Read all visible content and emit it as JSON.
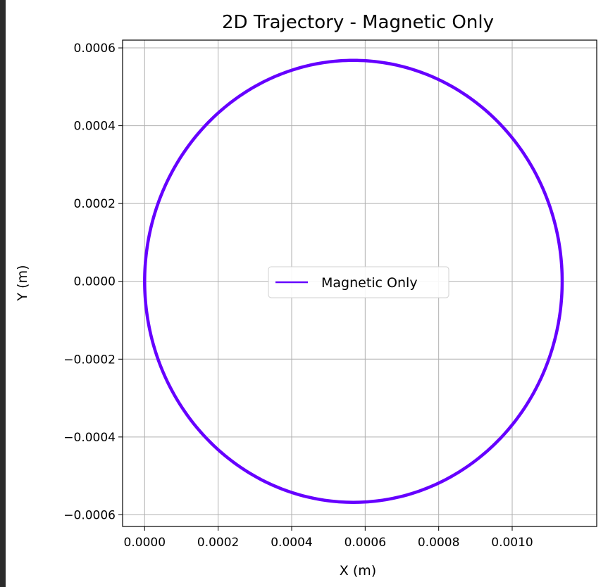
{
  "chart_data": {
    "type": "line",
    "title": "2D Trajectory - Magnetic Only",
    "xlabel": "X (m)",
    "ylabel": "Y (m)",
    "xlim": [
      -6e-05,
      0.00123
    ],
    "ylim": [
      -0.00063,
      0.00062
    ],
    "x_ticks": [
      0.0,
      0.0002,
      0.0004,
      0.0006,
      0.0008,
      0.001
    ],
    "x_tick_labels": [
      "0.0000",
      "0.0002",
      "0.0004",
      "0.0006",
      "0.0008",
      "0.0010"
    ],
    "y_ticks": [
      0.0006,
      0.0004,
      0.0002,
      0.0,
      -0.0002,
      -0.0004,
      -0.0006
    ],
    "y_tick_labels": [
      "0.0006",
      "0.0004",
      "0.0002",
      "0.0000",
      "−0.0002",
      "−0.0004",
      "−0.0006"
    ],
    "grid": true,
    "legend": {
      "location": "center",
      "entries": [
        "Magnetic Only"
      ]
    },
    "series": [
      {
        "name": "Magnetic Only",
        "color": "#6600ff",
        "shape": "circle",
        "center": [
          0.000568,
          0.0
        ],
        "radius": 0.000568,
        "samples": 360
      }
    ]
  }
}
